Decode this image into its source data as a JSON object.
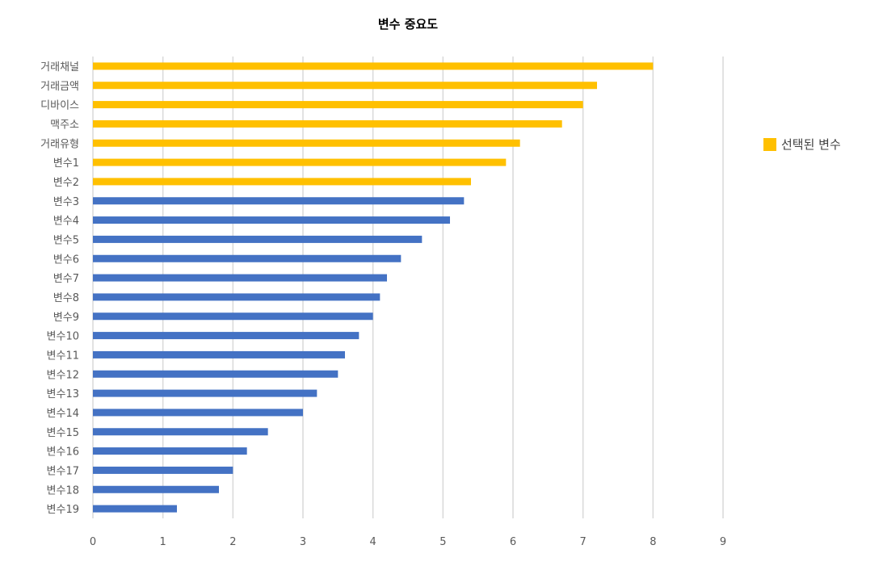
{
  "chart_data": {
    "type": "bar",
    "orientation": "horizontal",
    "title": "변수  중요도",
    "xlim": [
      0,
      9
    ],
    "x_ticks": [
      0,
      1,
      2,
      3,
      4,
      5,
      6,
      7,
      8,
      9
    ],
    "grid": "vertical",
    "categories": [
      "거래채널",
      "거래금액",
      "디바이스",
      "맥주소",
      "거래유형",
      "변수1",
      "변수2",
      "변수3",
      "변수4",
      "변수5",
      "변수6",
      "변수7",
      "변수8",
      "변수9",
      "변수10",
      "변수11",
      "변수12",
      "변수13",
      "변수14",
      "변수15",
      "변수16",
      "변수17",
      "변수18",
      "변수19"
    ],
    "values": [
      8.0,
      7.2,
      7.0,
      6.7,
      6.1,
      5.9,
      5.4,
      5.3,
      5.1,
      4.7,
      4.4,
      4.2,
      4.1,
      4.0,
      3.8,
      3.6,
      3.5,
      3.2,
      3.0,
      2.5,
      2.2,
      2.0,
      1.8,
      1.2
    ],
    "selected_count": 7,
    "colors": {
      "selected": "#FFC000",
      "other": "#4472C4",
      "grid": "#D9D9D9"
    },
    "legend": {
      "label": "선택된 변수",
      "position": "right"
    }
  }
}
